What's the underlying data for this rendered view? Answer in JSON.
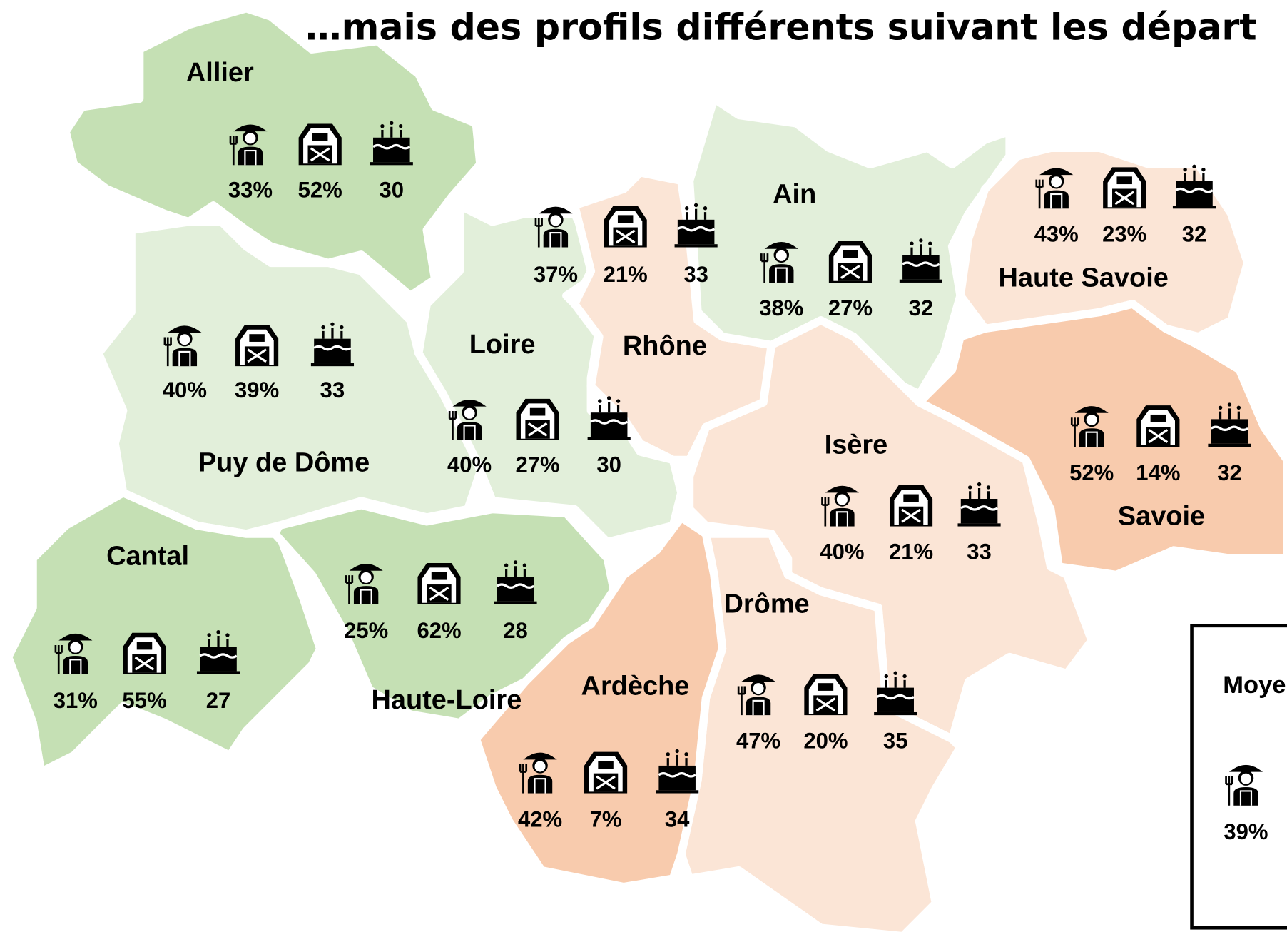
{
  "title": "…mais des profils différents suivant les départ",
  "regions": [
    {
      "name": "Allier",
      "color": "#c5e0b4",
      "stats": [
        "33%",
        "52%",
        "30"
      ]
    },
    {
      "name": "Puy de Dôme",
      "color": "#e2efda",
      "stats": [
        "40%",
        "39%",
        "33"
      ]
    },
    {
      "name": "Cantal",
      "color": "#c5e0b4",
      "stats": [
        "31%",
        "55%",
        "27"
      ]
    },
    {
      "name": "Haute-Loire",
      "color": "#c5e0b4",
      "stats": [
        "25%",
        "62%",
        "28"
      ]
    },
    {
      "name": "Loire",
      "color": "#e2efda",
      "stats": [
        "40%",
        "27%",
        "30"
      ]
    },
    {
      "name": "Rhône",
      "color": "#fbe5d6",
      "stats": [
        "37%",
        "21%",
        "33"
      ]
    },
    {
      "name": "Ain",
      "color": "#e2efda",
      "stats": [
        "38%",
        "27%",
        "32"
      ]
    },
    {
      "name": "Haute Savoie",
      "color": "#fbe5d6",
      "stats": [
        "43%",
        "23%",
        "32"
      ]
    },
    {
      "name": "Savoie",
      "color": "#f8cbad",
      "stats": [
        "52%",
        "14%",
        "32"
      ]
    },
    {
      "name": "Isère",
      "color": "#fbe5d6",
      "stats": [
        "40%",
        "21%",
        "33"
      ]
    },
    {
      "name": "Drôme",
      "color": "#fbe5d6",
      "stats": [
        "47%",
        "20%",
        "35"
      ]
    },
    {
      "name": "Ardèche",
      "color": "#f8cbad",
      "stats": [
        "42%",
        "7%",
        "34"
      ]
    }
  ],
  "legend": {
    "title": "Moye",
    "stats": [
      "39%"
    ]
  }
}
